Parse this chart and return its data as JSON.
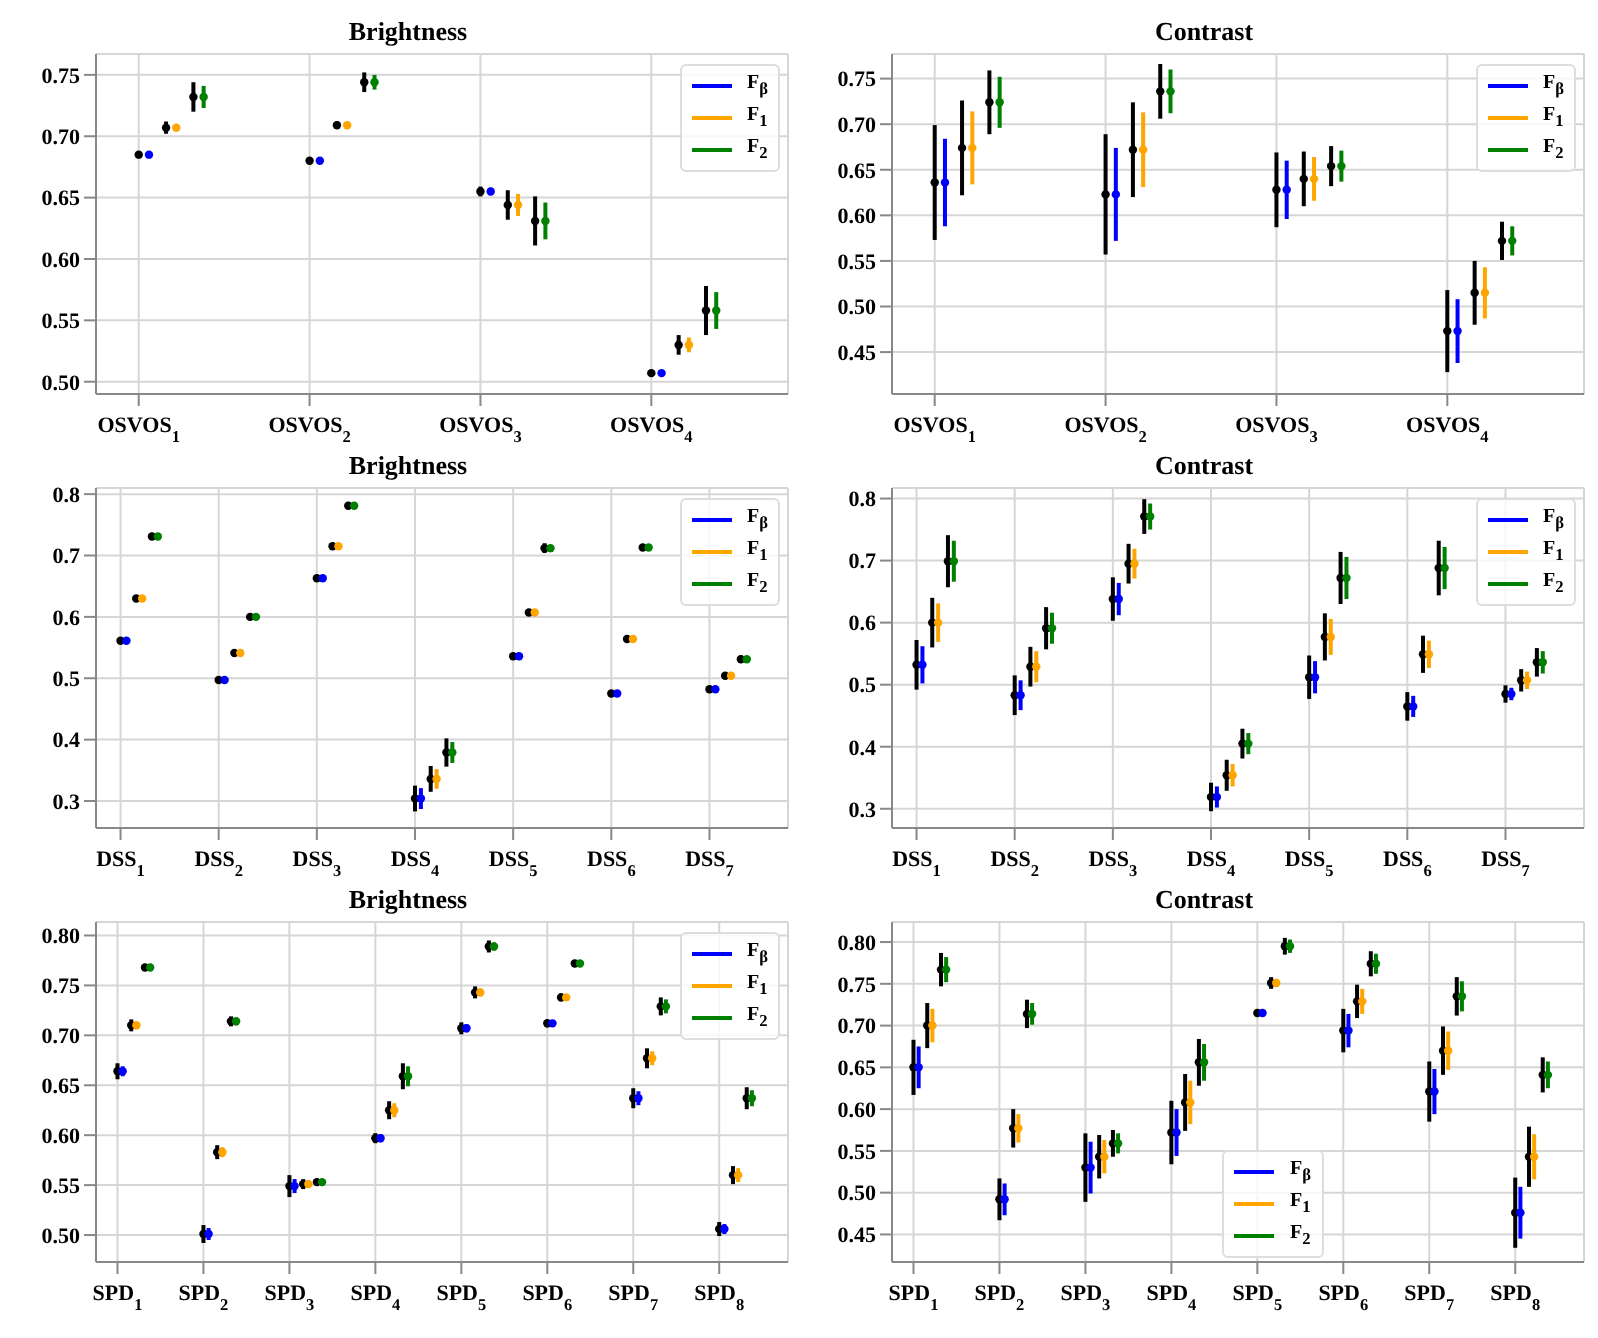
{
  "chart_data": [
    {
      "type": "scatter",
      "title": "Brightness",
      "categories": [
        "OSVOS$_{1}$",
        "OSVOS$_{2}$",
        "OSVOS$_{3}$",
        "OSVOS$_{4}$"
      ],
      "ylim": [
        0.49,
        0.767
      ],
      "yticks": [
        {
          "value": 0.5,
          "label": "0.50"
        },
        0.55,
        {
          "value": 0.6,
          "label": "0.60"
        },
        0.65,
        {
          "value": 0.7,
          "label": "0.70"
        },
        0.75
      ],
      "grid": true,
      "legend": "top right",
      "marker": "circle",
      "series": [
        {
          "color": "#000000",
          "values": [
            0.685,
            0.68,
            0.655,
            0.507
          ],
          "errors": [
            null,
            null,
            0.004,
            null
          ]
        },
        {
          "name": "F$_{β}$",
          "color": "#0000ff",
          "values": [
            0.685,
            0.68,
            0.655,
            0.507
          ],
          "errors": [
            null,
            null,
            0.003,
            null
          ]
        },
        {
          "color": "#000000",
          "values": [
            0.707,
            0.709,
            0.644,
            0.53
          ],
          "errors": [
            0.005,
            0.003,
            0.012,
            0.008
          ]
        },
        {
          "name": "F$_{1}$",
          "color": "#ffa500",
          "values": [
            0.707,
            0.709,
            0.644,
            0.53
          ],
          "errors": [
            0.003,
            null,
            0.009,
            0.006
          ]
        },
        {
          "color": "#000000",
          "values": [
            0.732,
            0.744,
            0.631,
            0.558
          ],
          "errors": [
            0.012,
            0.008,
            0.02,
            0.02
          ]
        },
        {
          "name": "F$_{2}$",
          "color": "#008000",
          "values": [
            0.732,
            0.744,
            0.631,
            0.558
          ],
          "errors": [
            0.009,
            0.006,
            0.015,
            0.015
          ]
        }
      ]
    },
    {
      "type": "scatter",
      "title": "Contrast",
      "categories": [
        "OSVOS$_{1}$",
        "OSVOS$_{2}$",
        "OSVOS$_{3}$",
        "OSVOS$_{4}$"
      ],
      "ylim": [
        0.404,
        0.777
      ],
      "yticks": [
        0.45,
        {
          "value": 0.5,
          "label": "0.50"
        },
        0.55,
        {
          "value": 0.6,
          "label": "0.60"
        },
        0.65,
        {
          "value": 0.7,
          "label": "0.70"
        },
        0.75
      ],
      "grid": true,
      "legend": "top right",
      "marker": "circle",
      "series": [
        {
          "color": "#000000",
          "values": [
            0.636,
            0.623,
            0.628,
            0.473
          ],
          "errors": [
            0.063,
            0.066,
            0.041,
            0.045
          ]
        },
        {
          "name": "F$_{β}$",
          "color": "#0000ff",
          "values": [
            0.636,
            0.623,
            0.628,
            0.473
          ],
          "errors": [
            0.048,
            0.051,
            0.032,
            0.035
          ]
        },
        {
          "color": "#000000",
          "values": [
            0.674,
            0.672,
            0.64,
            0.515
          ],
          "errors": [
            0.052,
            0.052,
            0.03,
            0.035
          ]
        },
        {
          "name": "F$_{1}$",
          "color": "#ffa500",
          "values": [
            0.674,
            0.672,
            0.64,
            0.515
          ],
          "errors": [
            0.04,
            0.041,
            0.024,
            0.028
          ]
        },
        {
          "color": "#000000",
          "values": [
            0.724,
            0.736,
            0.654,
            0.572
          ],
          "errors": [
            0.035,
            0.03,
            0.022,
            0.021
          ]
        },
        {
          "name": "F$_{2}$",
          "color": "#008000",
          "values": [
            0.724,
            0.736,
            0.654,
            0.572
          ],
          "errors": [
            0.028,
            0.024,
            0.017,
            0.016
          ]
        }
      ]
    },
    {
      "type": "scatter",
      "title": "Brightness",
      "categories": [
        "DSS$_{1}$",
        "DSS$_{2}$",
        "DSS$_{3}$",
        "DSS$_{4}$",
        "DSS$_{5}$",
        "DSS$_{6}$",
        "DSS$_{7}$"
      ],
      "ylim": [
        0.256,
        0.81
      ],
      "yticks": [
        0.3,
        0.4,
        0.5,
        0.6,
        0.7,
        0.8
      ],
      "grid": true,
      "legend": "top right",
      "marker": "circle",
      "series": [
        {
          "color": "#000000",
          "values": [
            0.561,
            0.497,
            0.663,
            0.304,
            0.536,
            0.475,
            0.482
          ],
          "errors": [
            null,
            null,
            0.003,
            0.021,
            null,
            0.005,
            null
          ]
        },
        {
          "name": "F$_{β}$",
          "color": "#0000ff",
          "values": [
            0.561,
            0.497,
            0.663,
            0.304,
            0.536,
            0.475,
            0.482
          ],
          "errors": [
            null,
            null,
            null,
            0.017,
            null,
            0.003,
            null
          ]
        },
        {
          "color": "#000000",
          "values": [
            0.63,
            0.541,
            0.715,
            0.336,
            0.607,
            0.564,
            0.504
          ],
          "errors": [
            0.003,
            0.003,
            0.003,
            0.021,
            0.003,
            0.006,
            0.004
          ]
        },
        {
          "name": "F$_{1}$",
          "color": "#ffa500",
          "values": [
            0.63,
            0.541,
            0.715,
            0.336,
            0.607,
            0.564,
            0.504
          ],
          "errors": [
            null,
            null,
            null,
            0.016,
            null,
            0.004,
            0.003
          ]
        },
        {
          "color": "#000000",
          "values": [
            0.731,
            0.6,
            0.781,
            0.379,
            0.712,
            0.713,
            0.531
          ],
          "errors": [
            0.004,
            0.003,
            0.003,
            0.023,
            0.008,
            0.005,
            0.006
          ]
        },
        {
          "name": "F$_{2}$",
          "color": "#008000",
          "values": [
            0.731,
            0.6,
            0.781,
            0.379,
            0.712,
            0.713,
            0.531
          ],
          "errors": [
            0.003,
            null,
            null,
            0.017,
            0.004,
            0.003,
            0.004
          ]
        }
      ]
    },
    {
      "type": "scatter",
      "title": "Contrast",
      "categories": [
        "DSS$_{1}$",
        "DSS$_{2}$",
        "DSS$_{3}$",
        "DSS$_{4}$",
        "DSS$_{5}$",
        "DSS$_{6}$",
        "DSS$_{7}$"
      ],
      "ylim": [
        0.269,
        0.817
      ],
      "yticks": [
        0.3,
        0.4,
        0.5,
        0.6,
        0.7,
        0.8
      ],
      "grid": true,
      "legend": "top right",
      "marker": "circle",
      "series": [
        {
          "color": "#000000",
          "values": [
            0.532,
            0.483,
            0.638,
            0.319,
            0.512,
            0.465,
            0.485
          ],
          "errors": [
            0.04,
            0.032,
            0.035,
            0.023,
            0.035,
            0.023,
            0.014
          ]
        },
        {
          "name": "F$_{β}$",
          "color": "#0000ff",
          "values": [
            0.532,
            0.483,
            0.638,
            0.319,
            0.512,
            0.465,
            0.485
          ],
          "errors": [
            0.03,
            0.024,
            0.026,
            0.017,
            0.026,
            0.017,
            0.01
          ]
        },
        {
          "color": "#000000",
          "values": [
            0.6,
            0.529,
            0.695,
            0.354,
            0.577,
            0.549,
            0.507
          ],
          "errors": [
            0.04,
            0.032,
            0.032,
            0.025,
            0.038,
            0.03,
            0.018
          ]
        },
        {
          "name": "F$_{1}$",
          "color": "#ffa500",
          "values": [
            0.6,
            0.529,
            0.695,
            0.354,
            0.577,
            0.549,
            0.507
          ],
          "errors": [
            0.031,
            0.025,
            0.024,
            0.018,
            0.029,
            0.022,
            0.014
          ]
        },
        {
          "color": "#000000",
          "values": [
            0.699,
            0.591,
            0.771,
            0.405,
            0.672,
            0.688,
            0.536
          ],
          "errors": [
            0.042,
            0.034,
            0.028,
            0.024,
            0.042,
            0.044,
            0.023
          ]
        },
        {
          "name": "F$_{2}$",
          "color": "#008000",
          "values": [
            0.699,
            0.591,
            0.771,
            0.405,
            0.672,
            0.688,
            0.536
          ],
          "errors": [
            0.033,
            0.025,
            0.021,
            0.017,
            0.034,
            0.034,
            0.018
          ]
        }
      ]
    },
    {
      "type": "scatter",
      "title": "Brightness",
      "categories": [
        "SPD$_{1}$",
        "SPD$_{2}$",
        "SPD$_{3}$",
        "SPD$_{4}$",
        "SPD$_{5}$",
        "SPD$_{6}$",
        "SPD$_{7}$",
        "SPD$_{8}$"
      ],
      "ylim": [
        0.473,
        0.8135
      ],
      "yticks": [
        {
          "value": 0.5,
          "label": "0.50"
        },
        0.55,
        {
          "value": 0.6,
          "label": "0.60"
        },
        0.65,
        {
          "value": 0.7,
          "label": "0.70"
        },
        0.75,
        {
          "value": 0.8,
          "label": "0.80"
        }
      ],
      "grid": true,
      "legend": "top right",
      "marker": "circle",
      "series": [
        {
          "color": "#000000",
          "values": [
            0.664,
            0.501,
            0.549,
            0.597,
            0.707,
            0.712,
            0.637,
            0.506
          ],
          "errors": [
            0.008,
            0.009,
            0.011,
            0.005,
            0.006,
            0.004,
            0.01,
            0.007
          ]
        },
        {
          "name": "F$_{β}$",
          "color": "#0000ff",
          "values": [
            0.664,
            0.501,
            0.549,
            0.597,
            0.707,
            0.712,
            0.637,
            0.506
          ],
          "errors": [
            0.005,
            0.006,
            0.007,
            0.004,
            0.004,
            0.003,
            0.007,
            0.005
          ]
        },
        {
          "color": "#000000",
          "values": [
            0.71,
            0.583,
            0.551,
            0.625,
            0.743,
            0.738,
            0.677,
            0.56
          ],
          "errors": [
            0.006,
            0.007,
            0.005,
            0.009,
            0.006,
            0.004,
            0.01,
            0.009
          ]
        },
        {
          "name": "F$_{1}$",
          "color": "#ffa500",
          "values": [
            0.71,
            0.583,
            0.551,
            0.625,
            0.743,
            0.738,
            0.677,
            0.56
          ],
          "errors": [
            0.004,
            0.005,
            0.004,
            0.007,
            0.004,
            null,
            0.007,
            0.007
          ]
        },
        {
          "color": "#000000",
          "values": [
            0.768,
            0.714,
            0.553,
            0.659,
            0.789,
            0.772,
            0.729,
            0.637
          ],
          "errors": [
            null,
            0.005,
            null,
            0.013,
            0.006,
            null,
            0.009,
            0.011
          ]
        },
        {
          "name": "F$_{2}$",
          "color": "#008000",
          "values": [
            0.768,
            0.714,
            0.553,
            0.659,
            0.789,
            0.772,
            0.729,
            0.637
          ],
          "errors": [
            null,
            0.004,
            null,
            0.01,
            0.004,
            null,
            0.007,
            0.008
          ]
        }
      ]
    },
    {
      "type": "scatter",
      "title": "Contrast",
      "categories": [
        "SPD$_{1}$",
        "SPD$_{2}$",
        "SPD$_{3}$",
        "SPD$_{4}$",
        "SPD$_{5}$",
        "SPD$_{6}$",
        "SPD$_{7}$",
        "SPD$_{8}$"
      ],
      "ylim": [
        0.417,
        0.824
      ],
      "yticks": [
        0.45,
        {
          "value": 0.5,
          "label": "0.50"
        },
        0.55,
        {
          "value": 0.6,
          "label": "0.60"
        },
        0.65,
        {
          "value": 0.7,
          "label": "0.70"
        },
        0.75,
        {
          "value": 0.8,
          "label": "0.80"
        }
      ],
      "grid": true,
      "legend": "bottom",
      "marker": "circle",
      "series": [
        {
          "color": "#000000",
          "values": [
            0.65,
            0.492,
            0.53,
            0.572,
            0.715,
            0.694,
            0.621,
            0.476
          ],
          "errors": [
            0.033,
            0.025,
            0.041,
            0.038,
            null,
            0.026,
            0.036,
            0.042
          ]
        },
        {
          "name": "F$_{β}$",
          "color": "#0000ff",
          "values": [
            0.65,
            0.492,
            0.53,
            0.572,
            0.715,
            0.694,
            0.621,
            0.476
          ],
          "errors": [
            0.025,
            0.019,
            0.031,
            0.028,
            null,
            0.02,
            0.027,
            0.031
          ]
        },
        {
          "color": "#000000",
          "values": [
            0.7,
            0.577,
            0.543,
            0.608,
            0.751,
            0.729,
            0.67,
            0.543
          ],
          "errors": [
            0.027,
            0.023,
            0.026,
            0.034,
            0.007,
            0.02,
            0.029,
            0.036
          ]
        },
        {
          "name": "F$_{1}$",
          "color": "#ffa500",
          "values": [
            0.7,
            0.577,
            0.543,
            0.608,
            0.751,
            0.729,
            0.67,
            0.543
          ],
          "errors": [
            0.02,
            0.017,
            0.02,
            0.026,
            0.005,
            0.015,
            0.023,
            0.027
          ]
        },
        {
          "color": "#000000",
          "values": [
            0.767,
            0.714,
            0.559,
            0.656,
            0.795,
            0.774,
            0.735,
            0.641
          ],
          "errors": [
            0.02,
            0.017,
            0.016,
            0.028,
            0.01,
            0.015,
            0.023,
            0.021
          ]
        },
        {
          "name": "F$_{2}$",
          "color": "#008000",
          "values": [
            0.767,
            0.714,
            0.559,
            0.656,
            0.795,
            0.774,
            0.735,
            0.641
          ],
          "errors": [
            0.015,
            0.013,
            0.012,
            0.022,
            0.008,
            0.012,
            0.018,
            0.016
          ]
        }
      ]
    }
  ]
}
